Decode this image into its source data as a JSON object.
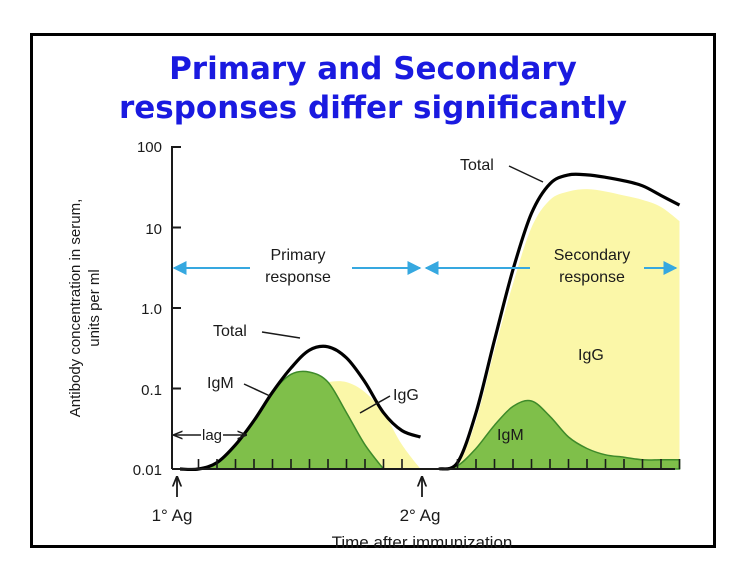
{
  "title": {
    "line1": "Primary and Secondary",
    "line2": "responses differ significantly"
  },
  "chart_data": {
    "type": "area",
    "ylabel_line1": "Antibody concentration in serum,",
    "ylabel_line2": "units per ml",
    "xlabel": "Time after immunization",
    "y_scale": "log",
    "ylim": [
      0.01,
      100
    ],
    "y_ticks": [
      "100",
      "10",
      "1.0",
      "0.1",
      "0.01"
    ],
    "grid": false,
    "x_markers": {
      "first": "1° Ag",
      "second": "2° Ag"
    },
    "phases": {
      "primary": [
        "Primary",
        "response"
      ],
      "secondary": [
        "Secondary",
        "response"
      ],
      "lag": "lag"
    },
    "series_labels": {
      "primary_total": "Total",
      "primary_igm": "IgM",
      "primary_igg": "IgG",
      "secondary_total": "Total",
      "secondary_igg": "IgG",
      "secondary_igm": "IgM"
    },
    "series": [
      {
        "name": "Total",
        "phase": "primary",
        "x": [
          0,
          1,
          2,
          3,
          4,
          5,
          6,
          7,
          8,
          9,
          10,
          11,
          12,
          13
        ],
        "values": [
          0.01,
          0.01,
          0.012,
          0.02,
          0.04,
          0.09,
          0.18,
          0.3,
          0.33,
          0.24,
          0.12,
          0.05,
          0.03,
          0.025
        ]
      },
      {
        "name": "IgM",
        "phase": "primary",
        "x": [
          0,
          1,
          2,
          3,
          4,
          5,
          6,
          7,
          8,
          9,
          10,
          11
        ],
        "values": [
          0.01,
          0.01,
          0.012,
          0.02,
          0.04,
          0.09,
          0.15,
          0.16,
          0.12,
          0.05,
          0.02,
          0.01
        ]
      },
      {
        "name": "IgG",
        "phase": "primary",
        "x": [
          6,
          7,
          8,
          9,
          10,
          11,
          12,
          13
        ],
        "values": [
          0.05,
          0.1,
          0.12,
          0.12,
          0.09,
          0.05,
          0.02,
          0.01
        ]
      },
      {
        "name": "Total",
        "phase": "secondary",
        "x": [
          14,
          15,
          16,
          17,
          18,
          19,
          20,
          21,
          22,
          23,
          24,
          25,
          26,
          27
        ],
        "values": [
          0.01,
          0.012,
          0.05,
          0.4,
          3,
          15,
          35,
          45,
          45,
          42,
          38,
          33,
          25,
          19
        ]
      },
      {
        "name": "IgG",
        "phase": "secondary",
        "x": [
          14,
          15,
          16,
          17,
          18,
          19,
          20,
          21,
          22,
          23,
          24,
          25,
          26,
          27
        ],
        "values": [
          0.01,
          0.011,
          0.04,
          0.3,
          2,
          10,
          22,
          28,
          30,
          28,
          25,
          22,
          18,
          12
        ]
      },
      {
        "name": "IgM",
        "phase": "secondary",
        "x": [
          14,
          15,
          16,
          17,
          18,
          19,
          20,
          21,
          22,
          23,
          24,
          25,
          26,
          27
        ],
        "values": [
          0.01,
          0.011,
          0.018,
          0.035,
          0.06,
          0.07,
          0.045,
          0.025,
          0.018,
          0.015,
          0.014,
          0.013,
          0.013,
          0.013
        ]
      }
    ],
    "colors": {
      "igm": "#7fbf4a",
      "igm_edge": "#3e8a2a",
      "igg": "#fbf7a8",
      "total": "#000000",
      "arrow": "#36a8e0",
      "title": "#1a1ae0"
    }
  }
}
